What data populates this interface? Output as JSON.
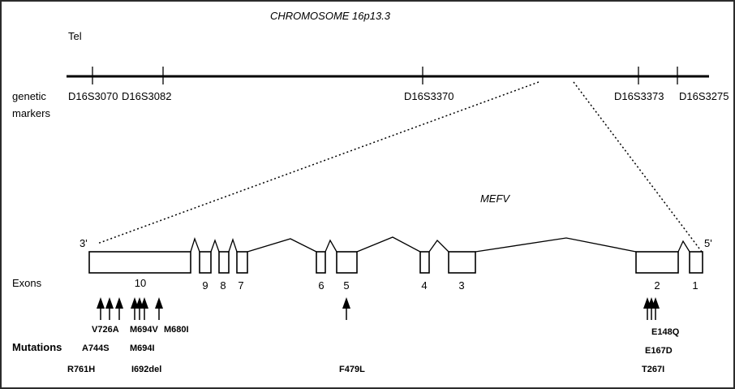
{
  "title": "CHROMOSOME 16p13.3",
  "telomere_label": "Tel",
  "genetic_markers_label": [
    "genetic",
    "markers"
  ],
  "markers": [
    "D16S3070",
    "D16S3082",
    "D16S3370",
    "D16S3373",
    "D16S3275"
  ],
  "gene_name": "MEFV",
  "end_3_label": "3'",
  "end_5_label": "5'",
  "exons_label": "Exons",
  "exon_numbers": [
    "10",
    "9",
    "8",
    "7",
    "6",
    "5",
    "4",
    "3",
    "2",
    "1"
  ],
  "mutations_label": "Mutations",
  "mutations": [
    "V726A",
    "M694V",
    "M680I",
    "A744S",
    "M694I",
    "R761H",
    "I692del",
    "F479L",
    "E148Q",
    "E167D",
    "T267I"
  ]
}
